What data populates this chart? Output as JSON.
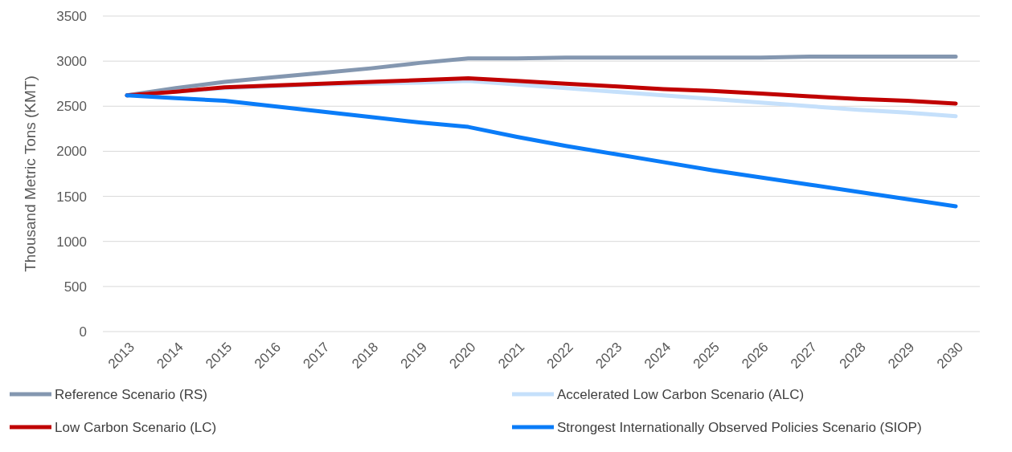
{
  "chart_data": {
    "type": "line",
    "ylabel": "Thousand Metric Tons (KMT)",
    "categories": [
      "2013",
      "2014",
      "2015",
      "2016",
      "2017",
      "2018",
      "2019",
      "2020",
      "2021",
      "2022",
      "2023",
      "2024",
      "2025",
      "2026",
      "2027",
      "2028",
      "2029",
      "2030"
    ],
    "ylim": [
      0,
      3500
    ],
    "yticks": [
      0,
      500,
      1000,
      1500,
      2000,
      2500,
      3000,
      3500
    ],
    "grid": "y",
    "legend": "bottom",
    "series": [
      {
        "name": "Reference Scenario (RS)",
        "color": "#8497b0",
        "values": [
          2620,
          2700,
          2770,
          2820,
          2870,
          2920,
          2980,
          3030,
          3030,
          3040,
          3040,
          3040,
          3040,
          3040,
          3050,
          3050,
          3050,
          3050
        ]
      },
      {
        "name": "Accelerated Low Carbon Scenario (ALC)",
        "color": "#c5e0fb",
        "values": [
          2620,
          2660,
          2700,
          2720,
          2740,
          2750,
          2760,
          2780,
          2740,
          2700,
          2660,
          2620,
          2580,
          2540,
          2500,
          2460,
          2430,
          2390
        ]
      },
      {
        "name": "Low Carbon Scenario (LC)",
        "color": "#c00000",
        "values": [
          2620,
          2660,
          2710,
          2730,
          2750,
          2770,
          2790,
          2810,
          2780,
          2750,
          2720,
          2690,
          2670,
          2640,
          2610,
          2580,
          2560,
          2530
        ]
      },
      {
        "name": "Strongest Internationally Observed Policies Scenario (SIOP)",
        "color": "#0a7cf8",
        "values": [
          2620,
          2590,
          2560,
          2500,
          2440,
          2380,
          2320,
          2270,
          2160,
          2060,
          1970,
          1880,
          1790,
          1710,
          1630,
          1550,
          1470,
          1390
        ]
      }
    ]
  }
}
